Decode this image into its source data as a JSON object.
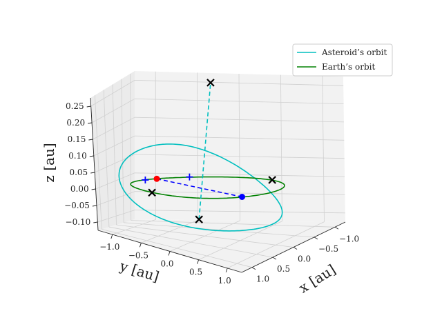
{
  "chart_data": {
    "type": "line",
    "projection": "3d",
    "title": "",
    "xlabel": "x [au]",
    "ylabel": "y [au]",
    "zlabel": "z [au]",
    "xlim": [
      -1.25,
      1.25
    ],
    "ylim": [
      -1.25,
      1.25
    ],
    "zlim": [
      -0.125,
      0.275
    ],
    "grid": true,
    "legend_placement": "top-right",
    "x_ticks": [
      {
        "value": -1.0,
        "label": "−1.0"
      },
      {
        "value": -0.5,
        "label": "−0.5"
      },
      {
        "value": 0.0,
        "label": "0.0"
      },
      {
        "value": 0.5,
        "label": "0.5"
      },
      {
        "value": 1.0,
        "label": "1.0"
      }
    ],
    "y_ticks": [
      {
        "value": 1.0,
        "label": "1.0"
      },
      {
        "value": 0.5,
        "label": "0.5"
      },
      {
        "value": 0.0,
        "label": "0.0"
      },
      {
        "value": -0.5,
        "label": "−0.5"
      },
      {
        "value": -1.0,
        "label": "−1.0"
      }
    ],
    "z_ticks": [
      {
        "value": 0.25,
        "label": "0.25"
      },
      {
        "value": 0.2,
        "label": "0.20"
      },
      {
        "value": 0.15,
        "label": "0.15"
      },
      {
        "value": 0.1,
        "label": "0.10"
      },
      {
        "value": 0.05,
        "label": "0.05"
      },
      {
        "value": 0.0,
        "label": "0.00"
      },
      {
        "value": -0.05,
        "label": "−0.05"
      },
      {
        "value": -0.1,
        "label": "−0.10"
      }
    ],
    "series": [
      {
        "name": "Asteroid’s orbit",
        "color": "#00bfbf",
        "style": "solid",
        "orbit": {
          "semi_major_au": 1.06,
          "eccentricity": 0.155,
          "inclination_deg": 7.5,
          "perihelion_argument_deg": 35
        }
      },
      {
        "name": "Earth’s orbit",
        "color": "#008000",
        "style": "solid",
        "orbit": {
          "semi_major_au": 1.0,
          "eccentricity": 0.0,
          "inclination_deg": 0.0,
          "perihelion_argument_deg": 0
        }
      }
    ],
    "dashed_lines": [
      {
        "color": "#00bfbf",
        "from": [
          -0.35,
          -0.78,
          -0.11
        ],
        "to": [
          0.55,
          0.9,
          0.26
        ]
      },
      {
        "color": "#0000ff",
        "from": [
          0.82,
          0.55,
          0.0
        ],
        "to": [
          -0.82,
          -0.55,
          0.0
        ]
      }
    ],
    "points": [
      {
        "marker": "circle",
        "color": "#0000ff",
        "x": 0.82,
        "y": 0.55,
        "z": 0.0
      },
      {
        "marker": "circle",
        "color": "#ff0000",
        "x": -0.82,
        "y": -0.55,
        "z": 0.0
      },
      {
        "marker": "plus",
        "color": "#0000ff",
        "x": -0.5,
        "y": -0.9,
        "z": 0.0
      },
      {
        "marker": "plus",
        "color": "#0000ff",
        "x": -0.92,
        "y": -0.35,
        "z": 0.0
      },
      {
        "marker": "x",
        "color": "#000000",
        "x": 0.55,
        "y": 0.9,
        "z": 0.26
      },
      {
        "marker": "x",
        "color": "#000000",
        "x": -0.35,
        "y": -0.78,
        "z": -0.11
      },
      {
        "marker": "x",
        "color": "#000000",
        "x": -0.42,
        "y": 0.92,
        "z": 0.0
      },
      {
        "marker": "x",
        "color": "#000000",
        "x": 0.55,
        "y": -0.85,
        "z": 0.0
      }
    ]
  }
}
